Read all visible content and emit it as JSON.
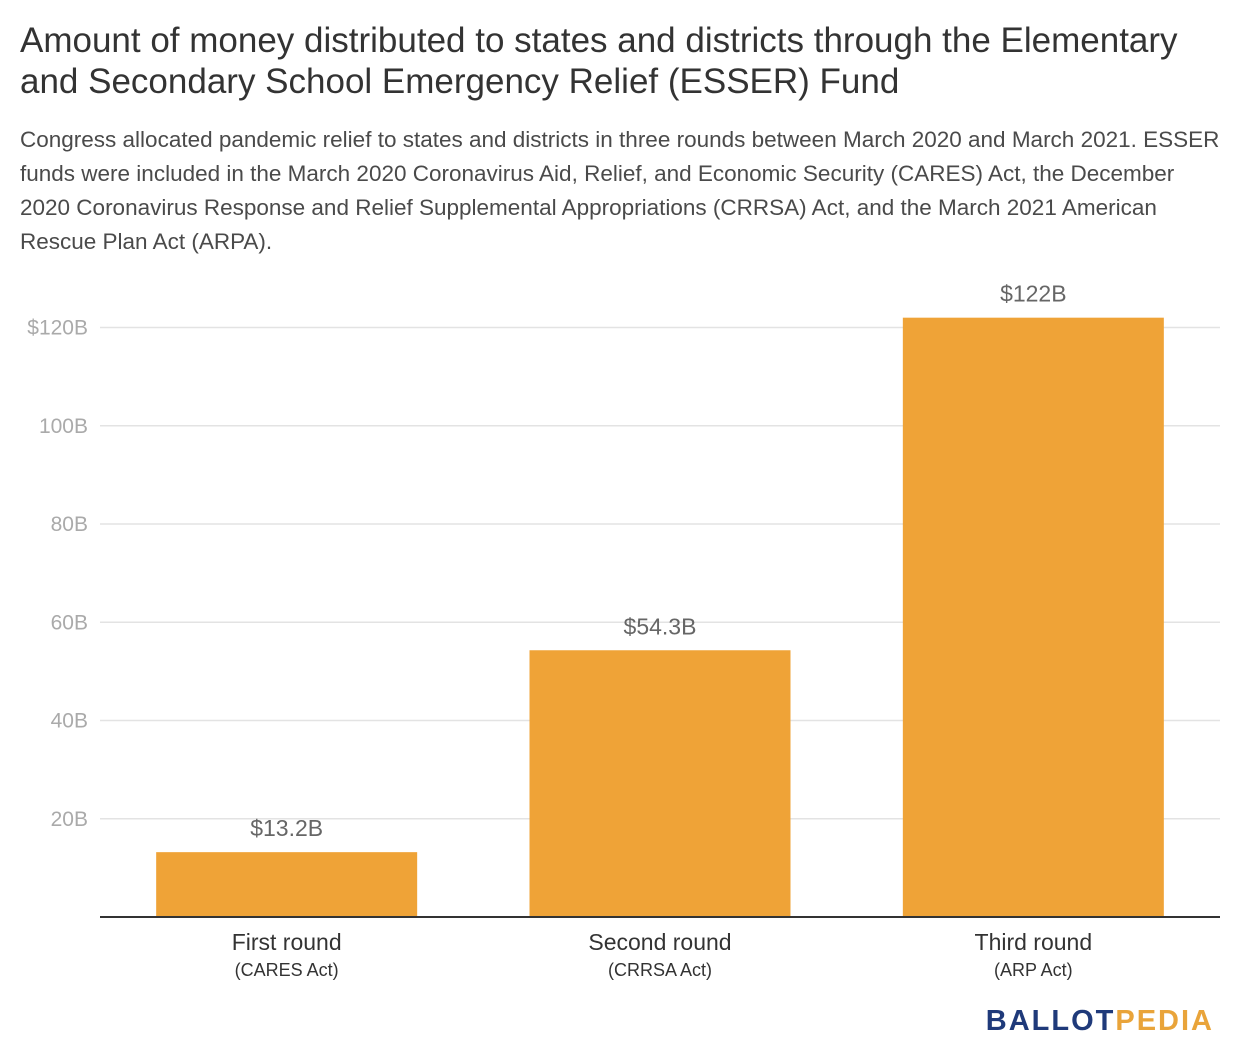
{
  "title": "Amount of money distributed to states and districts through the Elementary and Secondary School Emergency Relief (ESSER) Fund",
  "subtitle": "Congress allocated pandemic relief to states and districts in three rounds between March 2020 and March 2021. ESSER funds were included in the March 2020 Coronavirus Aid, Relief, and Economic Security (CARES) Act, the December 2020 Coronavirus Response and Relief Supplemental Appropriations (CRRSA) Act, and the March 2021 American Rescue Plan Act (ARPA).",
  "logo": {
    "part1": "BALLOT",
    "part2": "PEDIA"
  },
  "colors": {
    "bar": "#efa337",
    "grid": "#e3e3e3",
    "baseline": "#333333"
  },
  "chart_data": {
    "type": "bar",
    "categories": [
      "First round",
      "Second round",
      "Third round"
    ],
    "category_sublabels": [
      "(CARES Act)",
      "(CRRSA Act)",
      "(ARP Act)"
    ],
    "values": [
      13.2,
      54.3,
      122
    ],
    "value_labels": [
      "$13.2B",
      "$54.3B",
      "$122B"
    ],
    "ylim": [
      0,
      120
    ],
    "yticks": [
      20,
      40,
      60,
      80,
      100,
      120
    ],
    "ytick_labels": [
      "20B",
      "40B",
      "60B",
      "80B",
      "100B",
      "$120B"
    ],
    "grid": true,
    "xlabel": "",
    "ylabel": ""
  }
}
